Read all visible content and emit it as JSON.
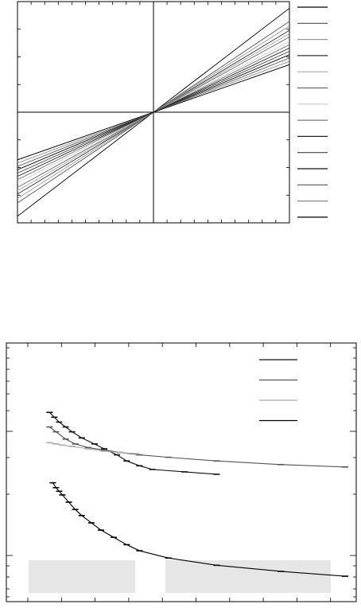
{
  "chart_data": [
    {
      "type": "line",
      "title": "",
      "xlabel": "",
      "ylabel": "",
      "xlim": [
        -1,
        1
      ],
      "ylim": [
        -1,
        1
      ],
      "x_minor_ticks": 20,
      "y_minor_ticks": 8,
      "grid": false,
      "legend": "right",
      "legend_labels_visible": false,
      "series": [
        {
          "slope": 0.94,
          "color": "#000000"
        },
        {
          "slope": 0.82,
          "color": "#555555"
        },
        {
          "slope": 0.78,
          "color": "#999999"
        },
        {
          "slope": 0.74,
          "color": "#333333"
        },
        {
          "slope": 0.71,
          "color": "#aaaaaa"
        },
        {
          "slope": 0.68,
          "color": "#666666"
        },
        {
          "slope": 0.64,
          "color": "#cccccc"
        },
        {
          "slope": 0.61,
          "color": "#777777"
        },
        {
          "slope": 0.58,
          "color": "#222222"
        },
        {
          "slope": 0.55,
          "color": "#444444"
        },
        {
          "slope": 0.52,
          "color": "#111111"
        },
        {
          "slope": 0.49,
          "color": "#555555"
        },
        {
          "slope": 0.46,
          "color": "#888888"
        },
        {
          "slope": 0.43,
          "color": "#000000"
        }
      ]
    },
    {
      "type": "line",
      "title": "",
      "xlabel": "",
      "ylabel": "",
      "xlim": [
        0,
        10
      ],
      "ylim": [
        0,
        10
      ],
      "grid": false,
      "legend": "top-right",
      "legend_labels_visible": false,
      "series": [
        {
          "color": "#111111",
          "x": [
            0.8,
            0.95,
            1.1,
            1.3,
            1.5,
            1.8,
            2.2,
            2.5,
            2.9,
            3.2,
            3.6,
            4.0,
            5.0,
            6.0
          ],
          "y": [
            7.6,
            7.4,
            7.2,
            7.0,
            6.8,
            6.55,
            6.3,
            6.1,
            5.85,
            5.6,
            5.4,
            5.25,
            5.15,
            5.05
          ],
          "error_bars": true
        },
        {
          "color": "#555555",
          "x": [
            0.8,
            1.0,
            1.3,
            1.6,
            2.0,
            2.5,
            3.0,
            3.6,
            4.5,
            6.0,
            8.0,
            10.0
          ],
          "y": [
            7.0,
            6.8,
            6.5,
            6.3,
            6.15,
            6.05,
            5.95,
            5.85,
            5.75,
            5.6,
            5.45,
            5.35
          ],
          "error_bars": true
        },
        {
          "color": "#aaaaaa",
          "x": [
            0.8,
            1.0,
            1.2,
            1.5,
            2.0,
            2.5,
            3.0,
            3.5
          ],
          "y": [
            6.35,
            6.3,
            6.25,
            6.2,
            6.1,
            6.0,
            5.95,
            5.9
          ],
          "error_bars": true
        },
        {
          "color": "#000000",
          "x": [
            0.9,
            1.0,
            1.1,
            1.2,
            1.4,
            1.6,
            1.8,
            2.1,
            2.4,
            2.8,
            3.2,
            3.6,
            4.5,
            6.0,
            8.0,
            10.0
          ],
          "y": [
            4.7,
            4.5,
            4.35,
            4.2,
            3.9,
            3.6,
            3.35,
            3.05,
            2.75,
            2.45,
            2.15,
            1.9,
            1.6,
            1.3,
            1.05,
            0.85
          ],
          "error_bars": true
        }
      ]
    }
  ]
}
